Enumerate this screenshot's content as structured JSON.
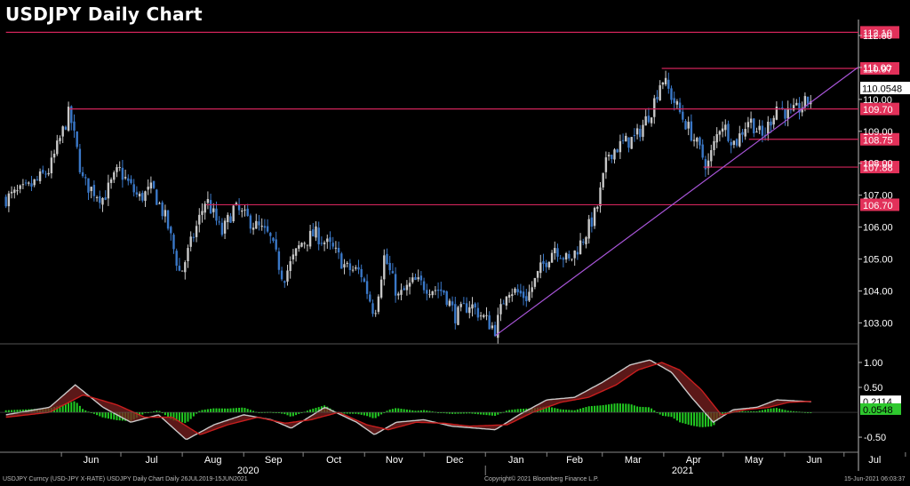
{
  "title": "USDJPY Daily Chart",
  "footer": {
    "left": "USDJPY Curncy (USD-JPY X-RATE) USDJPY Daily Chart  Daily 26JUL2019-15JUN2021",
    "center": "Copyright© 2021 Bloomberg Finance L.P.",
    "right": "15-Jun-2021 06:03:37"
  },
  "colors": {
    "background": "#000000",
    "up_candle": "#c8c8c8",
    "down_candle": "#3a78c8",
    "level_line": "#d0245a",
    "level_label_bg": "#e2315a",
    "trendline": "#a855d8",
    "macd_line": "#c8c8c8",
    "signal_line": "#c81e1e",
    "histogram": "#22cc22",
    "axis_text": "#ffffff"
  },
  "chart_data": [
    {
      "type": "candlestick",
      "title": "USDJPY Daily Chart",
      "ylim": [
        102.4,
        112.5
      ],
      "yticks": [
        "103.00",
        "104.00",
        "105.00",
        "106.00",
        "107.00",
        "108.00",
        "109.00",
        "110.00",
        "111.00",
        "112.00"
      ],
      "x_month_labels": [
        "Jun",
        "Jul",
        "Aug",
        "Sep",
        "Oct",
        "Nov",
        "Dec",
        "Jan",
        "Feb",
        "Mar",
        "Apr",
        "May",
        "Jun",
        "Jul"
      ],
      "x_year_labels": [
        "2020",
        "2021"
      ],
      "last_price": {
        "label": "110.0548",
        "value": 110.05
      },
      "horizontal_levels": [
        {
          "label": "112.10",
          "value": 112.1,
          "from_date": "2020-05-04"
        },
        {
          "label": "110.97",
          "value": 110.97,
          "from_date": "2021-03-31"
        },
        {
          "label": "109.70",
          "value": 109.7,
          "from_date": "2020-06-05"
        },
        {
          "label": "108.75",
          "value": 108.75,
          "from_date": "2021-05-14"
        },
        {
          "label": "107.88",
          "value": 107.88,
          "from_date": "2021-04-21"
        },
        {
          "label": "106.70",
          "value": 106.7,
          "from_date": "2020-08-13"
        }
      ],
      "trendline": {
        "from": {
          "date": "2021-01-06",
          "value": 102.6
        },
        "to": {
          "date": "2021-07-08",
          "value": 111.0
        }
      },
      "series_path": [
        [
          "2020-05-04",
          106.9
        ],
        [
          "2020-05-15",
          107.2
        ],
        [
          "2020-05-26",
          107.8
        ],
        [
          "2020-06-05",
          109.6
        ],
        [
          "2020-06-12",
          107.4
        ],
        [
          "2020-06-22",
          106.9
        ],
        [
          "2020-06-30",
          107.8
        ],
        [
          "2020-07-10",
          106.9
        ],
        [
          "2020-07-17",
          107.2
        ],
        [
          "2020-07-24",
          106.2
        ],
        [
          "2020-07-31",
          104.5
        ],
        [
          "2020-08-06",
          105.6
        ],
        [
          "2020-08-13",
          106.9
        ],
        [
          "2020-08-21",
          105.8
        ],
        [
          "2020-08-27",
          106.6
        ],
        [
          "2020-09-04",
          106.2
        ],
        [
          "2020-09-14",
          105.7
        ],
        [
          "2020-09-21",
          104.4
        ],
        [
          "2020-09-30",
          105.5
        ],
        [
          "2020-10-07",
          105.8
        ],
        [
          "2020-10-16",
          105.3
        ],
        [
          "2020-10-23",
          104.7
        ],
        [
          "2020-10-30",
          104.6
        ],
        [
          "2020-11-06",
          103.3
        ],
        [
          "2020-11-11",
          105.1
        ],
        [
          "2020-11-18",
          103.8
        ],
        [
          "2020-11-26",
          104.3
        ],
        [
          "2020-12-04",
          104.1
        ],
        [
          "2020-12-11",
          104.0
        ],
        [
          "2020-12-17",
          103.2
        ],
        [
          "2020-12-24",
          103.6
        ],
        [
          "2021-01-06",
          102.8
        ],
        [
          "2021-01-12",
          104.1
        ],
        [
          "2021-01-22",
          103.8
        ],
        [
          "2021-01-29",
          104.7
        ],
        [
          "2021-02-05",
          105.4
        ],
        [
          "2021-02-12",
          104.9
        ],
        [
          "2021-02-19",
          105.6
        ],
        [
          "2021-02-26",
          106.5
        ],
        [
          "2021-03-04",
          108.3
        ],
        [
          "2021-03-11",
          108.6
        ],
        [
          "2021-03-18",
          108.8
        ],
        [
          "2021-03-26",
          109.7
        ],
        [
          "2021-03-31",
          110.7
        ],
        [
          "2021-04-09",
          109.6
        ],
        [
          "2021-04-16",
          108.8
        ],
        [
          "2021-04-23",
          107.9
        ],
        [
          "2021-04-30",
          109.3
        ],
        [
          "2021-05-07",
          108.6
        ],
        [
          "2021-05-14",
          109.4
        ],
        [
          "2021-05-21",
          108.8
        ],
        [
          "2021-05-28",
          109.8
        ],
        [
          "2021-06-04",
          109.5
        ],
        [
          "2021-06-15",
          110.05
        ]
      ]
    },
    {
      "type": "line",
      "title": "",
      "ylim": [
        -0.82,
        1.32
      ],
      "yticks": [
        "1.00",
        "0.50",
        "-0.50"
      ],
      "last_values": [
        {
          "label": "0.2114",
          "value": 0.2114
        },
        {
          "label": "0.0548",
          "value": 0.0548
        }
      ],
      "macd_path": [
        [
          "2020-05-04",
          -0.05
        ],
        [
          "2020-05-26",
          0.1
        ],
        [
          "2020-06-08",
          0.55
        ],
        [
          "2020-06-22",
          0.1
        ],
        [
          "2020-07-06",
          -0.2
        ],
        [
          "2020-07-20",
          -0.05
        ],
        [
          "2020-08-03",
          -0.55
        ],
        [
          "2020-08-17",
          -0.25
        ],
        [
          "2020-09-01",
          -0.05
        ],
        [
          "2020-09-15",
          -0.15
        ],
        [
          "2020-09-25",
          -0.32
        ],
        [
          "2020-10-12",
          0.1
        ],
        [
          "2020-10-28",
          -0.2
        ],
        [
          "2020-11-06",
          -0.45
        ],
        [
          "2020-11-17",
          -0.2
        ],
        [
          "2020-12-01",
          -0.15
        ],
        [
          "2020-12-15",
          -0.28
        ],
        [
          "2021-01-06",
          -0.35
        ],
        [
          "2021-01-18",
          -0.05
        ],
        [
          "2021-02-01",
          0.25
        ],
        [
          "2021-02-15",
          0.3
        ],
        [
          "2021-03-01",
          0.6
        ],
        [
          "2021-03-15",
          0.95
        ],
        [
          "2021-03-25",
          1.05
        ],
        [
          "2021-04-05",
          0.8
        ],
        [
          "2021-04-15",
          0.3
        ],
        [
          "2021-04-26",
          -0.2
        ],
        [
          "2021-05-06",
          0.05
        ],
        [
          "2021-05-18",
          0.1
        ],
        [
          "2021-05-28",
          0.25
        ],
        [
          "2021-06-15",
          0.21
        ]
      ],
      "signal_path": [
        [
          "2020-05-04",
          -0.1
        ],
        [
          "2020-05-26",
          0.0
        ],
        [
          "2020-06-12",
          0.35
        ],
        [
          "2020-06-29",
          0.15
        ],
        [
          "2020-07-13",
          -0.1
        ],
        [
          "2020-07-27",
          -0.1
        ],
        [
          "2020-08-10",
          -0.45
        ],
        [
          "2020-08-24",
          -0.25
        ],
        [
          "2020-09-08",
          -0.1
        ],
        [
          "2020-09-22",
          -0.22
        ],
        [
          "2020-10-05",
          -0.15
        ],
        [
          "2020-10-19",
          0.0
        ],
        [
          "2020-11-02",
          -0.25
        ],
        [
          "2020-11-13",
          -0.35
        ],
        [
          "2020-11-27",
          -0.2
        ],
        [
          "2020-12-11",
          -0.22
        ],
        [
          "2020-12-24",
          -0.28
        ],
        [
          "2021-01-12",
          -0.25
        ],
        [
          "2021-01-25",
          0.0
        ],
        [
          "2021-02-08",
          0.2
        ],
        [
          "2021-02-22",
          0.3
        ],
        [
          "2021-03-08",
          0.55
        ],
        [
          "2021-03-19",
          0.85
        ],
        [
          "2021-03-31",
          1.0
        ],
        [
          "2021-04-09",
          0.85
        ],
        [
          "2021-04-20",
          0.45
        ],
        [
          "2021-04-30",
          -0.05
        ],
        [
          "2021-05-12",
          0.05
        ],
        [
          "2021-05-24",
          0.1
        ],
        [
          "2021-06-03",
          0.2
        ],
        [
          "2021-06-15",
          0.22
        ]
      ]
    }
  ]
}
